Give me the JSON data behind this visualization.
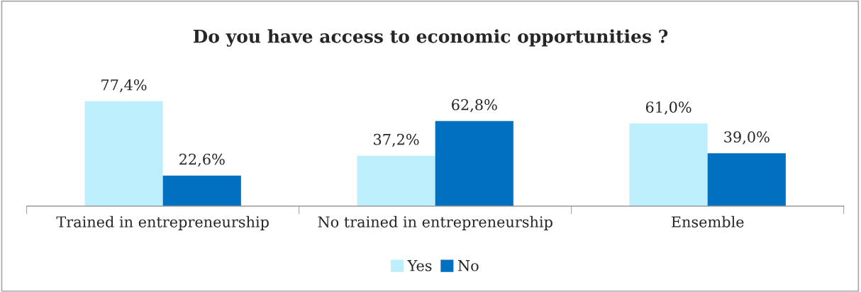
{
  "chart_data": {
    "type": "bar",
    "title": "Do you have access to economic opportunities ?",
    "categories": [
      "Trained in entrepreneurship",
      "No trained in entrepreneurship",
      "Ensemble"
    ],
    "series": [
      {
        "name": "Yes",
        "color": "#bdeefb",
        "values": [
          77.4,
          37.2,
          61.0
        ],
        "value_labels": [
          "77,4%",
          "37,2%",
          "61,0%"
        ]
      },
      {
        "name": "No",
        "color": "#0070c0",
        "values": [
          22.6,
          62.8,
          39.0
        ],
        "value_labels": [
          "22,6%",
          "62,8%",
          "39,0%"
        ]
      }
    ],
    "legend": "bottom",
    "grid": false
  }
}
